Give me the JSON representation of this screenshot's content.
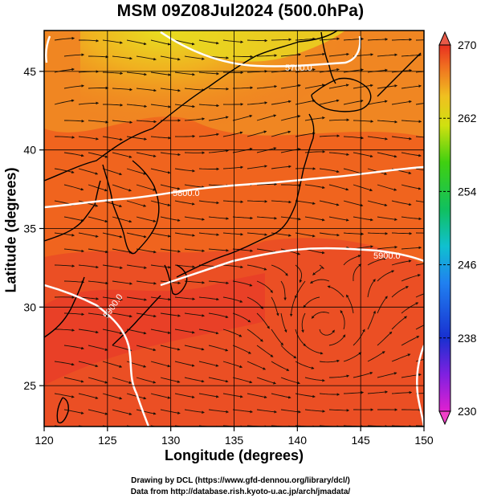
{
  "title": "MSM 09Z08Jul2024 (500.0hPa)",
  "xaxis": {
    "label": "Longitude (degrees)",
    "min": 120,
    "max": 150,
    "ticks": [
      "120",
      "125",
      "130",
      "135",
      "140",
      "145",
      "150"
    ]
  },
  "yaxis": {
    "label": "Latitude  (degrees)",
    "min": 22.4,
    "max": 47.6,
    "ticks": [
      "25",
      "30",
      "35",
      "40",
      "45"
    ]
  },
  "colorbar": {
    "min": 230,
    "max": 270,
    "ticks": [
      "230",
      "238",
      "246",
      "254",
      "262",
      "270"
    ]
  },
  "contours": [
    {
      "label": "5700.0"
    },
    {
      "label": "5800.0"
    },
    {
      "label": "5900.0"
    },
    {
      "label": "5900.0"
    }
  ],
  "credits": {
    "line1": "Drawing by DCL (https://www.gfd-dennou.org/library/dcl/)",
    "line2": "Data from http://database.rish.kyoto-u.ac.jp/arch/jmadata/"
  },
  "colors": {
    "field_warm": "#f0641e",
    "field_hot": "#e83a2a",
    "field_cool": "#f0c020",
    "streamline": "#1a1208",
    "coast": "#000000",
    "contour": "#ffffff"
  }
}
